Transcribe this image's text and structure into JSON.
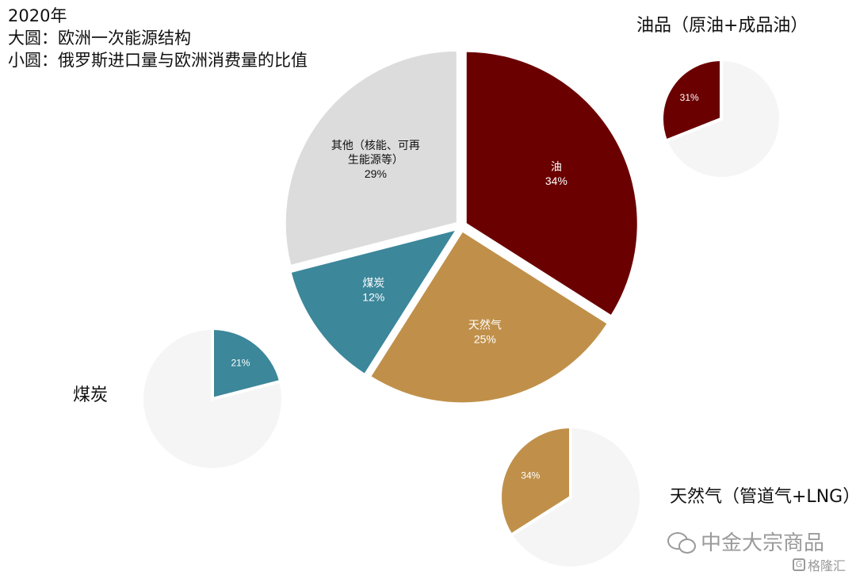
{
  "titles": {
    "line1": "2020年",
    "line2": "大圆：欧洲一次能源结构",
    "line3": "小圆：俄罗斯进口量与欧洲消费量的比值"
  },
  "small_titles": {
    "oil": "油品（原油+成品油）",
    "coal": "煤炭",
    "gas": "天然气（管道气+LNG）"
  },
  "watermark": {
    "main": "中金大宗商品",
    "secondary": "格隆汇",
    "secondary_icon": "G"
  },
  "colors": {
    "oil": "#6b0000",
    "gas": "#c0904a",
    "coal": "#3c879a",
    "other": "#dcdcdc",
    "background_circle": "#f5f5f5"
  },
  "chart_data": [
    {
      "type": "pie",
      "name": "欧洲一次能源结构",
      "slices": [
        {
          "label_lines": [
            "油"
          ],
          "value": 34,
          "display": "34%",
          "color": "#6b0000",
          "text_color": "#ffffff"
        },
        {
          "label_lines": [
            "天然气"
          ],
          "value": 25,
          "display": "25%",
          "color": "#c0904a",
          "text_color": "#ffffff"
        },
        {
          "label_lines": [
            "煤炭"
          ],
          "value": 12,
          "display": "12%",
          "color": "#3c879a",
          "text_color": "#ffffff"
        },
        {
          "label_lines": [
            "其他（核能、可再",
            "生能源等）"
          ],
          "value": 29,
          "display": "29%",
          "color": "#dcdcdc",
          "text_color": "#111111"
        }
      ]
    },
    {
      "type": "pie",
      "name": "油品（原油+成品油）",
      "slices": [
        {
          "label_lines": [],
          "value": 31,
          "display": "31%",
          "color": "#6b0000",
          "text_color": "#ffffff",
          "highlight": true
        },
        {
          "label_lines": [],
          "value": 69,
          "display": "",
          "color": "#f5f5f5",
          "text_color": "#111111"
        }
      ]
    },
    {
      "type": "pie",
      "name": "煤炭",
      "slices": [
        {
          "label_lines": [],
          "value": 21,
          "display": "21%",
          "color": "#3c879a",
          "text_color": "#ffffff",
          "highlight": true
        },
        {
          "label_lines": [],
          "value": 79,
          "display": "",
          "color": "#f5f5f5",
          "text_color": "#111111"
        }
      ]
    },
    {
      "type": "pie",
      "name": "天然气（管道气+LNG）",
      "slices": [
        {
          "label_lines": [],
          "value": 34,
          "display": "34%",
          "color": "#c0904a",
          "text_color": "#ffffff",
          "highlight": true
        },
        {
          "label_lines": [],
          "value": 66,
          "display": "",
          "color": "#f5f5f5",
          "text_color": "#111111"
        }
      ]
    }
  ]
}
